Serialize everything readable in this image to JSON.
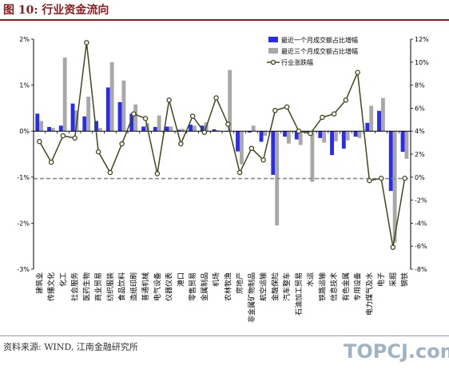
{
  "figure_title": "图 10:  行业资金流向",
  "source_note": "资料来源:  WIND, 江南金融研究所",
  "watermark": "TOPCJ.com",
  "colors": {
    "series_1m": "#2a2af0",
    "series_3m": "#a8a8a8",
    "series_line": "#3a4a1a",
    "marker_fill": "#ffffff",
    "ref_line": "#888888",
    "title": "#8b1a1a"
  },
  "chart_data": {
    "type": "bar",
    "categories": [
      "建筑业",
      "传播文化",
      "化工",
      "社会服务",
      "医药生物",
      "商业贸易",
      "纺织服装",
      "食品饮料",
      "造纸印刷",
      "普通机械",
      "电气设备",
      "仪器仪表",
      "港口",
      "零售贸易",
      "金属制品",
      "机场",
      "农林牧渔",
      "房地产",
      "非金属矿物制品",
      "航空运输",
      "金融保险",
      "汽车整车",
      "石油加工贸易",
      "水运",
      "铁路运输",
      "信息技术",
      "有色金属",
      "专用设备",
      "电力煤气及水",
      "电子",
      "采掘",
      "钢铁"
    ],
    "series": [
      {
        "name": "最近一个月成交额占比增幅",
        "axis": "left",
        "kind": "bar",
        "values": [
          0.38,
          0.09,
          0.12,
          0.6,
          0.32,
          0.22,
          0.95,
          0.63,
          0.38,
          0.1,
          0.09,
          0.1,
          0.03,
          0.14,
          0.12,
          0.04,
          0.0,
          -0.44,
          -0.03,
          -0.23,
          -0.95,
          -0.12,
          -0.18,
          -0.02,
          -0.15,
          -0.52,
          -0.38,
          -0.12,
          0.18,
          0.44,
          -1.3,
          -0.45
        ]
      },
      {
        "name": "最近三个月成交额占比增幅",
        "axis": "left",
        "kind": "bar",
        "values": [
          0.22,
          0.07,
          1.6,
          0.45,
          0.75,
          0.07,
          1.5,
          1.1,
          0.58,
          0.17,
          0.34,
          0.1,
          0.05,
          0.12,
          0.19,
          0.02,
          1.33,
          -0.72,
          0.12,
          -0.1,
          -2.05,
          -0.27,
          -0.3,
          -1.1,
          -0.25,
          -0.22,
          -0.2,
          -0.15,
          0.55,
          0.72,
          -2.42,
          -0.6
        ]
      },
      {
        "name": "行业涨跌幅",
        "axis": "right",
        "kind": "line",
        "values": [
          3.1,
          1.3,
          3.6,
          3.4,
          11.7,
          2.2,
          0.4,
          2.9,
          5.5,
          5.1,
          0.3,
          6.7,
          2.9,
          5.3,
          3.9,
          6.9,
          4.6,
          0.4,
          2.5,
          1.5,
          5.8,
          6.1,
          4.0,
          3.8,
          5.2,
          5.5,
          6.7,
          9.1,
          -0.3,
          -0.1,
          -6.1,
          -0.1
        ]
      }
    ],
    "y_left": {
      "min": -3,
      "max": 2,
      "ticks": [
        "-3%",
        "-2%",
        "-1%",
        "0%",
        "1%",
        "2%"
      ]
    },
    "y_right": {
      "min": -8,
      "max": 12,
      "ticks": [
        "-8%",
        "-6%",
        "-4%",
        "-2%",
        "0%",
        "2%",
        "4%",
        "6%",
        "8%",
        "10%",
        "12%"
      ]
    },
    "reference_line": {
      "axis": "left",
      "value": -1.03
    },
    "legend": {
      "placement": "top-right",
      "entries": [
        "最近一个月成交额占比增幅",
        "最近三个月成交额占比增幅",
        "行业涨跌幅"
      ]
    },
    "grid": false,
    "title": "",
    "xlabel": "",
    "ylabel": ""
  }
}
